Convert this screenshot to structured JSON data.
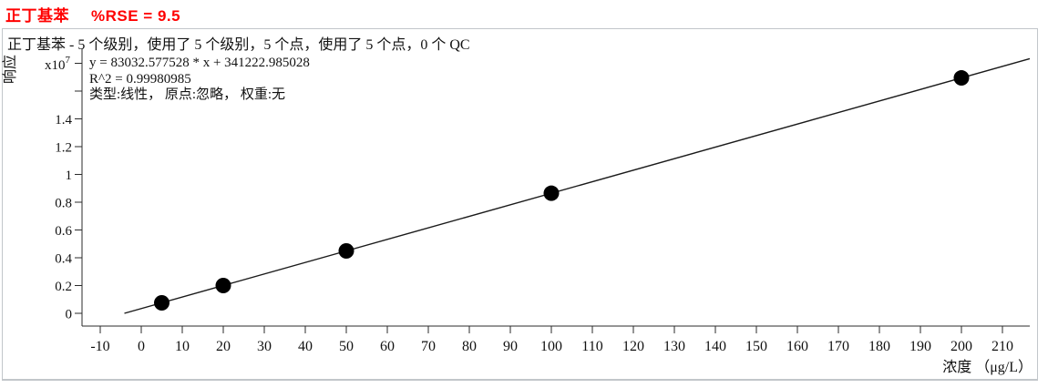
{
  "title": {
    "compound": "正丁基苯",
    "rse": "%RSE = 9.5",
    "color": "#ff0000"
  },
  "panel": {
    "header": "正丁基苯 - 5 个级别，使用了 5 个级别，5 个点，使用了 5 个点，0 个 QC",
    "annotation": {
      "equation": "y = 83032.577528 * x  + 341222.985028",
      "r_squared": "R^2 = 0.99980985",
      "fit_info": "类型:线性， 原点:忽略， 权重:无"
    },
    "border_color": "#c2c6ca"
  },
  "chart_data": {
    "type": "scatter",
    "series_name": "正丁基苯",
    "xlabel": "浓度 （μg/L）",
    "ylabel": "响应",
    "y_scale": {
      "base": "x10",
      "exponent": "7"
    },
    "x": [
      5,
      20,
      50,
      100,
      200
    ],
    "y": [
      756386,
      2001875,
      4492852,
      8644481,
      16947738
    ],
    "fit": {
      "slope": 83032.577528,
      "intercept": 341222.985028,
      "r2": 0.99980985,
      "type": "线性",
      "origin": "忽略",
      "weight": "无"
    },
    "x_ticks": [
      -10,
      0,
      10,
      20,
      30,
      40,
      50,
      60,
      70,
      80,
      90,
      100,
      110,
      120,
      130,
      140,
      150,
      160,
      170,
      180,
      190,
      200,
      210
    ],
    "y_ticks": [
      0,
      0.2,
      0.4,
      0.6,
      0.8,
      1,
      1.2,
      1.4,
      1.6,
      1.8
    ],
    "y_tick_labels": [
      "0",
      "0.2",
      "0.4",
      "0.6",
      "0.8",
      "1",
      "1.2",
      "1.4",
      "",
      ""
    ],
    "xlim": [
      -14.4,
      216.7
    ],
    "ylim_e7": [
      0,
      1.8
    ],
    "grid": false,
    "legend": false,
    "line_color": "#1a1a1a",
    "point_color": "#000000",
    "axis_color": "#2b2b2b"
  }
}
